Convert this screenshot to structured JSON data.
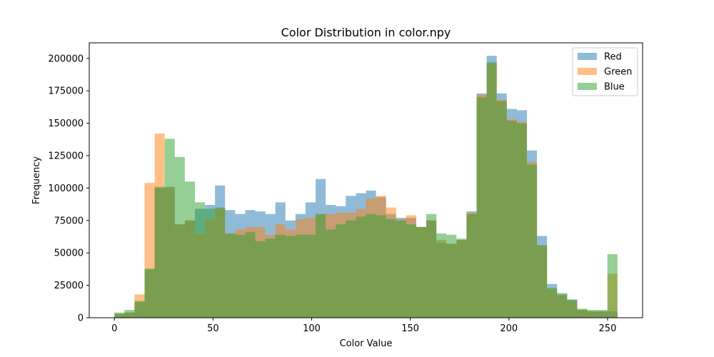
{
  "chart_data": {
    "type": "bar",
    "title": "Color Distribution in color.npy",
    "xlabel": "Color Value",
    "ylabel": "Frequency",
    "xlim": [
      -12.75,
      267.75
    ],
    "ylim": [
      0,
      212000
    ],
    "xticks": [
      0,
      50,
      100,
      150,
      200,
      250
    ],
    "yticks": [
      0,
      25000,
      50000,
      75000,
      100000,
      125000,
      150000,
      175000,
      200000
    ],
    "grid": false,
    "legend_position": "top-right",
    "bin_edges": [
      0.0,
      5.1,
      10.2,
      15.3,
      20.4,
      25.5,
      30.6,
      35.7,
      40.8,
      45.9,
      51.0,
      56.1,
      61.2,
      66.3,
      71.4,
      76.5,
      81.6,
      86.7,
      91.8,
      96.9,
      102.0,
      107.1,
      112.2,
      117.3,
      122.4,
      127.5,
      132.6,
      137.7,
      142.8,
      147.9,
      153.0,
      158.1,
      163.2,
      168.3,
      173.4,
      178.5,
      183.6,
      188.7,
      193.8,
      198.9,
      204.0,
      209.1,
      214.2,
      219.3,
      224.4,
      229.5,
      234.6,
      239.7,
      244.8,
      249.9,
      255.0
    ],
    "series": [
      {
        "name": "Red",
        "color": "#1f77b4",
        "values": [
          3000,
          4000,
          12000,
          37000,
          100000,
          101000,
          72000,
          75000,
          84000,
          87000,
          102000,
          83000,
          80000,
          83000,
          82000,
          80000,
          89000,
          75000,
          80000,
          89000,
          107000,
          87000,
          86000,
          94000,
          96000,
          98000,
          93000,
          80000,
          77000,
          77000,
          70000,
          75000,
          58000,
          57000,
          60000,
          82000,
          173000,
          202000,
          173000,
          161000,
          160000,
          129000,
          63000,
          26000,
          18000,
          14000,
          6000,
          5000,
          5000,
          5000
        ]
      },
      {
        "name": "Green",
        "color": "#ff7f0e",
        "values": [
          3000,
          4000,
          18000,
          104000,
          142000,
          100000,
          72000,
          75000,
          65000,
          76000,
          84000,
          65000,
          68000,
          70000,
          70000,
          64000,
          72000,
          68000,
          76000,
          77000,
          80000,
          80000,
          81000,
          81000,
          84000,
          92000,
          94000,
          85000,
          76000,
          79000,
          70000,
          75000,
          60000,
          57000,
          60000,
          81000,
          172000,
          196000,
          168000,
          153000,
          151000,
          120000,
          56000,
          22000,
          17000,
          13000,
          6000,
          5000,
          5000,
          34000
        ]
      },
      {
        "name": "Blue",
        "color": "#2ca02c",
        "values": [
          4000,
          6000,
          13000,
          38000,
          101000,
          138000,
          124000,
          105000,
          89000,
          84000,
          85000,
          65000,
          64000,
          66000,
          59000,
          61000,
          64000,
          63000,
          64000,
          64000,
          80000,
          68000,
          72000,
          75000,
          78000,
          80000,
          79000,
          76000,
          75000,
          72000,
          70000,
          80000,
          65000,
          64000,
          61000,
          80000,
          170000,
          197000,
          167000,
          152000,
          150000,
          118000,
          56000,
          23000,
          19000,
          14000,
          7000,
          6000,
          6000,
          49000
        ]
      }
    ]
  }
}
